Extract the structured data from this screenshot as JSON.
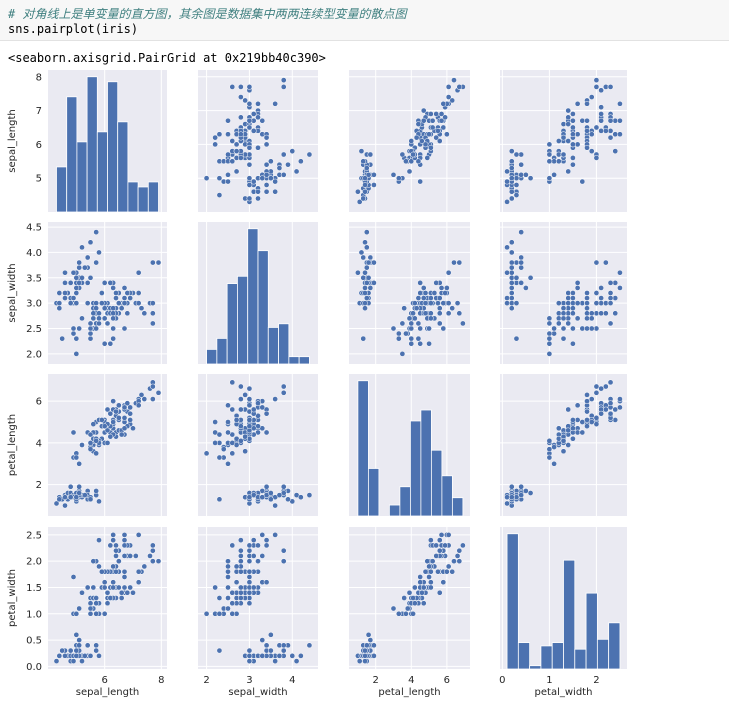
{
  "notebook": {
    "comment": "# 对角线上是单变量的直方图，其余图是数据集中两两连续型变量的散点图",
    "code": "sns.pairplot(iris)",
    "output": "<seaborn.axisgrid.PairGrid at 0x219bb40c390>"
  },
  "colors": {
    "panel_bg": "#eaeaf2",
    "grid": "#ffffff",
    "marker": "#4c72b0",
    "bar": "#4c72b0"
  },
  "chart_data": {
    "type": "scatter",
    "variables": [
      "sepal_length",
      "sepal_width",
      "petal_length",
      "petal_width"
    ],
    "ranges": {
      "sepal_length": [
        4.0,
        8.2
      ],
      "sepal_width": [
        1.8,
        4.6
      ],
      "petal_length": [
        0.5,
        7.3
      ],
      "petal_width": [
        -0.05,
        2.65
      ]
    },
    "ticks": {
      "sepal_length": [
        "5",
        "6",
        "7",
        "8"
      ],
      "sepal_width": [
        "2.0",
        "2.5",
        "3.0",
        "3.5",
        "4.0",
        "4.5"
      ],
      "petal_length": [
        "2",
        "4",
        "6"
      ],
      "petal_width": [
        "0.0",
        "0.5",
        "1.0",
        "1.5",
        "2.0",
        "2.5"
      ]
    },
    "xticks": {
      "sepal_length": [
        "6",
        "8"
      ],
      "sepal_width": [
        "2",
        "3",
        "4"
      ],
      "petal_length": [
        "2",
        "4",
        "6"
      ],
      "petal_width": [
        "0",
        "1",
        "2"
      ]
    },
    "histograms": {
      "sepal_length": {
        "counts": [
          9,
          23,
          14,
          27,
          16,
          26,
          18,
          6,
          5,
          6
        ],
        "min": 4.3,
        "max": 7.9
      },
      "sepal_width": {
        "counts": [
          4,
          7,
          22,
          24,
          37,
          31,
          10,
          11,
          2,
          2
        ],
        "min": 2.0,
        "max": 4.4
      },
      "petal_length": {
        "counts": [
          37,
          13,
          0,
          3,
          8,
          26,
          29,
          18,
          11,
          5
        ],
        "min": 1.0,
        "max": 6.9
      },
      "petal_width": {
        "counts": [
          41,
          8,
          1,
          7,
          8,
          33,
          6,
          23,
          9,
          14
        ],
        "min": 0.1,
        "max": 2.5
      }
    },
    "grid": true,
    "n_points": 150,
    "points": [
      [
        5.1,
        3.5,
        1.4,
        0.2
      ],
      [
        4.9,
        3.0,
        1.4,
        0.2
      ],
      [
        4.7,
        3.2,
        1.3,
        0.2
      ],
      [
        4.6,
        3.1,
        1.5,
        0.2
      ],
      [
        5.0,
        3.6,
        1.4,
        0.2
      ],
      [
        5.4,
        3.9,
        1.7,
        0.4
      ],
      [
        4.6,
        3.4,
        1.4,
        0.3
      ],
      [
        5.0,
        3.4,
        1.5,
        0.2
      ],
      [
        4.4,
        2.9,
        1.4,
        0.2
      ],
      [
        4.9,
        3.1,
        1.5,
        0.1
      ],
      [
        5.4,
        3.7,
        1.5,
        0.2
      ],
      [
        4.8,
        3.4,
        1.6,
        0.2
      ],
      [
        4.8,
        3.0,
        1.4,
        0.1
      ],
      [
        4.3,
        3.0,
        1.1,
        0.1
      ],
      [
        5.8,
        4.0,
        1.2,
        0.2
      ],
      [
        5.7,
        4.4,
        1.5,
        0.4
      ],
      [
        5.4,
        3.9,
        1.3,
        0.4
      ],
      [
        5.1,
        3.5,
        1.4,
        0.3
      ],
      [
        5.7,
        3.8,
        1.7,
        0.3
      ],
      [
        5.1,
        3.8,
        1.5,
        0.3
      ],
      [
        5.4,
        3.4,
        1.7,
        0.2
      ],
      [
        5.1,
        3.7,
        1.5,
        0.4
      ],
      [
        4.6,
        3.6,
        1.0,
        0.2
      ],
      [
        5.1,
        3.3,
        1.7,
        0.5
      ],
      [
        4.8,
        3.4,
        1.9,
        0.2
      ],
      [
        5.0,
        3.0,
        1.6,
        0.2
      ],
      [
        5.0,
        3.4,
        1.6,
        0.4
      ],
      [
        5.2,
        3.5,
        1.5,
        0.2
      ],
      [
        5.2,
        3.4,
        1.4,
        0.2
      ],
      [
        4.7,
        3.2,
        1.6,
        0.2
      ],
      [
        4.8,
        3.1,
        1.6,
        0.2
      ],
      [
        5.4,
        3.4,
        1.5,
        0.4
      ],
      [
        5.2,
        4.1,
        1.5,
        0.1
      ],
      [
        5.5,
        4.2,
        1.4,
        0.2
      ],
      [
        4.9,
        3.1,
        1.5,
        0.2
      ],
      [
        5.0,
        3.2,
        1.2,
        0.2
      ],
      [
        5.5,
        3.5,
        1.3,
        0.2
      ],
      [
        4.9,
        3.6,
        1.4,
        0.1
      ],
      [
        4.4,
        3.0,
        1.3,
        0.2
      ],
      [
        5.1,
        3.4,
        1.5,
        0.2
      ],
      [
        5.0,
        3.5,
        1.3,
        0.3
      ],
      [
        4.5,
        2.3,
        1.3,
        0.3
      ],
      [
        4.4,
        3.2,
        1.3,
        0.2
      ],
      [
        5.0,
        3.5,
        1.6,
        0.6
      ],
      [
        5.1,
        3.8,
        1.9,
        0.4
      ],
      [
        4.8,
        3.0,
        1.4,
        0.3
      ],
      [
        5.1,
        3.8,
        1.6,
        0.2
      ],
      [
        4.6,
        3.2,
        1.4,
        0.2
      ],
      [
        5.3,
        3.7,
        1.5,
        0.2
      ],
      [
        5.0,
        3.3,
        1.4,
        0.2
      ],
      [
        7.0,
        3.2,
        4.7,
        1.4
      ],
      [
        6.4,
        3.2,
        4.5,
        1.5
      ],
      [
        6.9,
        3.1,
        4.9,
        1.5
      ],
      [
        5.5,
        2.3,
        4.0,
        1.3
      ],
      [
        6.5,
        2.8,
        4.6,
        1.5
      ],
      [
        5.7,
        2.8,
        4.5,
        1.3
      ],
      [
        6.3,
        3.3,
        4.7,
        1.6
      ],
      [
        4.9,
        2.4,
        3.3,
        1.0
      ],
      [
        6.6,
        2.9,
        4.6,
        1.3
      ],
      [
        5.2,
        2.7,
        3.9,
        1.4
      ],
      [
        5.0,
        2.0,
        3.5,
        1.0
      ],
      [
        5.9,
        3.0,
        4.2,
        1.5
      ],
      [
        6.0,
        2.2,
        4.0,
        1.0
      ],
      [
        6.1,
        2.9,
        4.7,
        1.4
      ],
      [
        5.6,
        2.9,
        3.6,
        1.3
      ],
      [
        6.7,
        3.1,
        4.4,
        1.4
      ],
      [
        5.6,
        3.0,
        4.5,
        1.5
      ],
      [
        5.8,
        2.7,
        4.1,
        1.0
      ],
      [
        6.2,
        2.2,
        4.5,
        1.5
      ],
      [
        5.6,
        2.5,
        3.9,
        1.1
      ],
      [
        5.9,
        3.2,
        4.8,
        1.8
      ],
      [
        6.1,
        2.8,
        4.0,
        1.3
      ],
      [
        6.3,
        2.5,
        4.9,
        1.5
      ],
      [
        6.1,
        2.8,
        4.7,
        1.2
      ],
      [
        6.4,
        2.9,
        4.3,
        1.3
      ],
      [
        6.6,
        3.0,
        4.4,
        1.4
      ],
      [
        6.8,
        2.8,
        4.8,
        1.4
      ],
      [
        6.7,
        3.0,
        5.0,
        1.7
      ],
      [
        6.0,
        2.9,
        4.5,
        1.5
      ],
      [
        5.7,
        2.6,
        3.5,
        1.0
      ],
      [
        5.5,
        2.4,
        3.8,
        1.1
      ],
      [
        5.5,
        2.4,
        3.7,
        1.0
      ],
      [
        5.8,
        2.7,
        3.9,
        1.2
      ],
      [
        6.0,
        2.7,
        5.1,
        1.6
      ],
      [
        5.4,
        3.0,
        4.5,
        1.5
      ],
      [
        6.0,
        3.4,
        4.5,
        1.6
      ],
      [
        6.7,
        3.1,
        4.7,
        1.5
      ],
      [
        6.3,
        2.3,
        4.4,
        1.3
      ],
      [
        5.6,
        3.0,
        4.1,
        1.3
      ],
      [
        5.5,
        2.5,
        4.0,
        1.3
      ],
      [
        5.5,
        2.6,
        4.4,
        1.2
      ],
      [
        6.1,
        3.0,
        4.6,
        1.4
      ],
      [
        5.8,
        2.6,
        4.0,
        1.2
      ],
      [
        5.0,
        2.3,
        3.3,
        1.0
      ],
      [
        5.6,
        2.7,
        4.2,
        1.3
      ],
      [
        5.7,
        3.0,
        4.2,
        1.2
      ],
      [
        5.7,
        2.9,
        4.2,
        1.3
      ],
      [
        6.2,
        2.9,
        4.3,
        1.3
      ],
      [
        5.1,
        2.5,
        3.0,
        1.1
      ],
      [
        5.7,
        2.8,
        4.1,
        1.3
      ],
      [
        6.3,
        3.3,
        6.0,
        2.5
      ],
      [
        5.8,
        2.7,
        5.1,
        1.9
      ],
      [
        7.1,
        3.0,
        5.9,
        2.1
      ],
      [
        6.3,
        2.9,
        5.6,
        1.8
      ],
      [
        6.5,
        3.0,
        5.8,
        2.2
      ],
      [
        7.6,
        3.0,
        6.6,
        2.1
      ],
      [
        4.9,
        2.5,
        4.5,
        1.7
      ],
      [
        7.3,
        2.9,
        6.3,
        1.8
      ],
      [
        6.7,
        2.5,
        5.8,
        1.8
      ],
      [
        7.2,
        3.6,
        6.1,
        2.5
      ],
      [
        6.5,
        3.2,
        5.1,
        2.0
      ],
      [
        6.4,
        2.7,
        5.3,
        1.9
      ],
      [
        6.8,
        3.0,
        5.5,
        2.1
      ],
      [
        5.7,
        2.5,
        5.0,
        2.0
      ],
      [
        5.8,
        2.8,
        5.1,
        2.4
      ],
      [
        6.4,
        3.2,
        5.3,
        2.3
      ],
      [
        6.5,
        3.0,
        5.5,
        1.8
      ],
      [
        7.7,
        3.8,
        6.7,
        2.2
      ],
      [
        7.7,
        2.6,
        6.9,
        2.3
      ],
      [
        6.0,
        2.2,
        5.0,
        1.5
      ],
      [
        6.9,
        3.2,
        5.7,
        2.3
      ],
      [
        5.6,
        2.8,
        4.9,
        2.0
      ],
      [
        7.7,
        2.8,
        6.7,
        2.0
      ],
      [
        6.3,
        2.7,
        4.9,
        1.8
      ],
      [
        6.7,
        3.3,
        5.7,
        2.1
      ],
      [
        7.2,
        3.2,
        6.0,
        1.8
      ],
      [
        6.2,
        2.8,
        4.8,
        1.8
      ],
      [
        6.1,
        3.0,
        4.9,
        1.8
      ],
      [
        6.4,
        2.8,
        5.6,
        2.1
      ],
      [
        7.2,
        3.0,
        5.8,
        1.6
      ],
      [
        7.4,
        2.8,
        6.1,
        1.9
      ],
      [
        7.9,
        3.8,
        6.4,
        2.0
      ],
      [
        6.4,
        2.8,
        5.6,
        2.2
      ],
      [
        6.3,
        2.8,
        5.1,
        1.5
      ],
      [
        6.1,
        2.6,
        5.6,
        1.4
      ],
      [
        7.7,
        3.0,
        6.1,
        2.3
      ],
      [
        6.3,
        3.4,
        5.6,
        2.4
      ],
      [
        6.4,
        3.1,
        5.5,
        1.8
      ],
      [
        6.0,
        3.0,
        4.8,
        1.8
      ],
      [
        6.9,
        3.1,
        5.4,
        2.1
      ],
      [
        6.7,
        3.1,
        5.6,
        2.4
      ],
      [
        6.9,
        3.1,
        5.1,
        2.3
      ],
      [
        5.8,
        2.7,
        5.1,
        1.9
      ],
      [
        6.8,
        3.2,
        5.9,
        2.3
      ],
      [
        6.7,
        3.3,
        5.7,
        2.5
      ],
      [
        6.7,
        3.0,
        5.2,
        2.3
      ],
      [
        6.3,
        2.5,
        5.0,
        1.9
      ],
      [
        6.5,
        3.0,
        5.2,
        2.0
      ],
      [
        6.2,
        3.4,
        5.4,
        2.3
      ],
      [
        5.9,
        3.0,
        5.1,
        1.8
      ]
    ]
  }
}
